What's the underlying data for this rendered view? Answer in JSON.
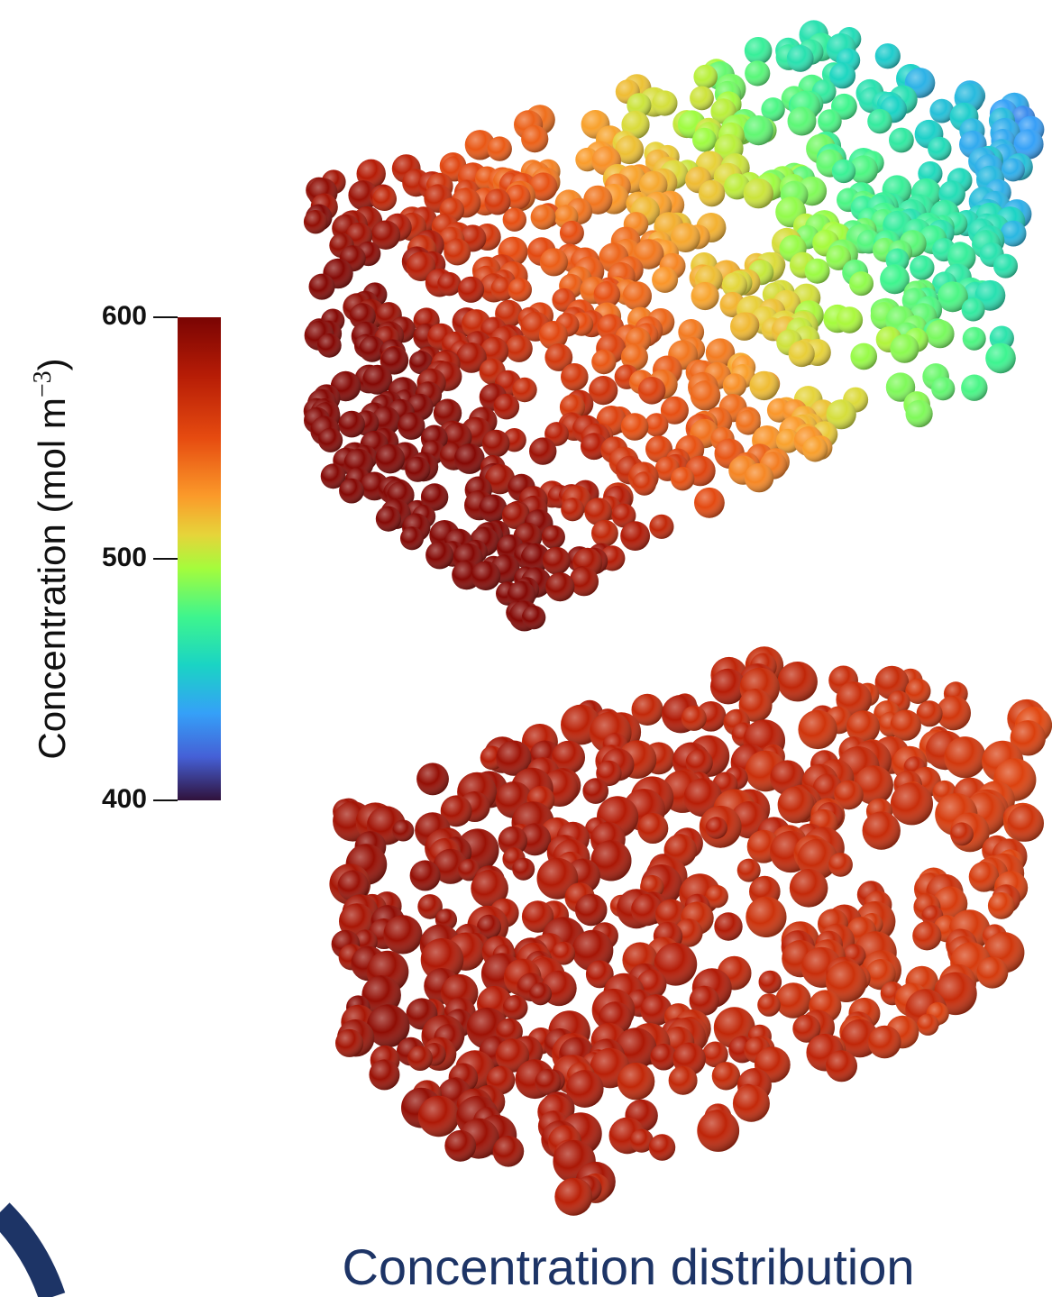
{
  "colorbar": {
    "label": {
      "text": "Concentration (mol m",
      "superscript": "−3",
      "close": ")"
    },
    "range": [
      400,
      600
    ],
    "ticks": [
      600,
      500,
      400
    ]
  },
  "caption": "Concentration distribution"
}
